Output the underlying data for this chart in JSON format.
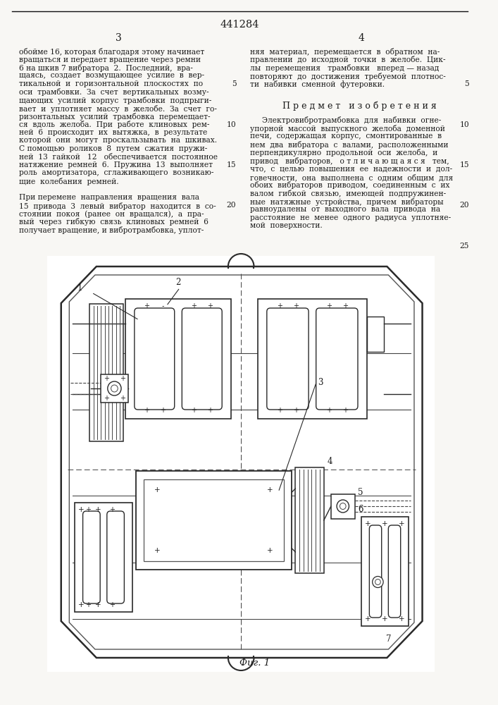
{
  "patent_number": "441284",
  "page_left": "3",
  "page_right": "4",
  "background_color": "#f8f7f4",
  "text_color": "#1a1a1a",
  "figure_label": "Фиг. 1",
  "col_left_text": [
    "обойме 16, которая благодаря этому начинает",
    "вращаться и передает вращение через ремни",
    "6 на шкив 7 вибратора  2.  Последний,  вра-",
    "щаясь,  создает  возмущающее  усилие  в  вер-",
    "тикальной  и  горизонтальной  плоскостях  по",
    "оси  трамбовки.  За  счет  вертикальных  возму-",
    "щающих  усилий  корпус  трамбовки  подпрыги-",
    "вает  и  уплотняет  массу  в  желобе.  За  счет  го-",
    "ризонтальных  усилий  трамбовка  перемещает-",
    "ся  вдоль  желоба.  При  работе  клиновых  рем-",
    "ней  6  происходит  их  вытяжка,  в  результате",
    "которой  они  могут  проскальзывать  на  шкивах.",
    "С помощью  роликов  8  путем  сжатия  пружи-",
    "ней  13  гайкой   12   обеспечивается  постоянное",
    "натяжение  ремней  6.  Пружина  13  выполняет",
    "роль  амортизатора,  сглаживающего  возникаю-",
    "щие  колебания  ремней.",
    "",
    "При перемене  направления  вращения  вала",
    "15  привода  3  левый  вибратор  находится  в  со-",
    "стоянии  покоя  (ранее  он  вращался),  а  пра-",
    "вый  через  гибкую  связь  клиновых  ремней  6",
    "получает вращение, и вибротрамбовка, уплот-"
  ],
  "col_right_text_top": [
    "няя  материал,  перемещается  в  обратном  на-",
    "правлении  до  исходной  точки  в  желобе.  Цик-",
    "лы  перемещения   трамбовки   вперед — назад",
    "повторяют  до  достижения  требуемой  плотнос-",
    "ти  набивки  сменной  футеровки."
  ],
  "subject_title": "П р е д м е т   и з о б р е т е н и я",
  "subject_text": [
    "     Электровибротрамбовка  для  набивки  огне-",
    "упорной  массой  выпускного  желоба  доменной",
    "печи,  содержащая  корпус,  смонтированные  в",
    "нем  два  вибратора  с  валами,  расположенными",
    "перпендикулярно  продольной  оси  желоба,  и",
    "привод   вибраторов,   о т л и ч а ю щ а я с я   тем,",
    "что,  с  целью  повышения  ее  надежности  и  дол-",
    "говечности,  она  выполнена  с  одним  общим  для",
    "обоих  вибраторов  приводом,  соединенным  с  их",
    "валом  гибкой  связью,  имеющей  подпружинен-",
    "ные  натяжные  устройства,  причем  вибраторы",
    "равноудалены  от  выходного  вала  привода  на",
    "расстояние  не  менее  одного  радиуса  уплотняе-",
    "мой  поверхности."
  ]
}
